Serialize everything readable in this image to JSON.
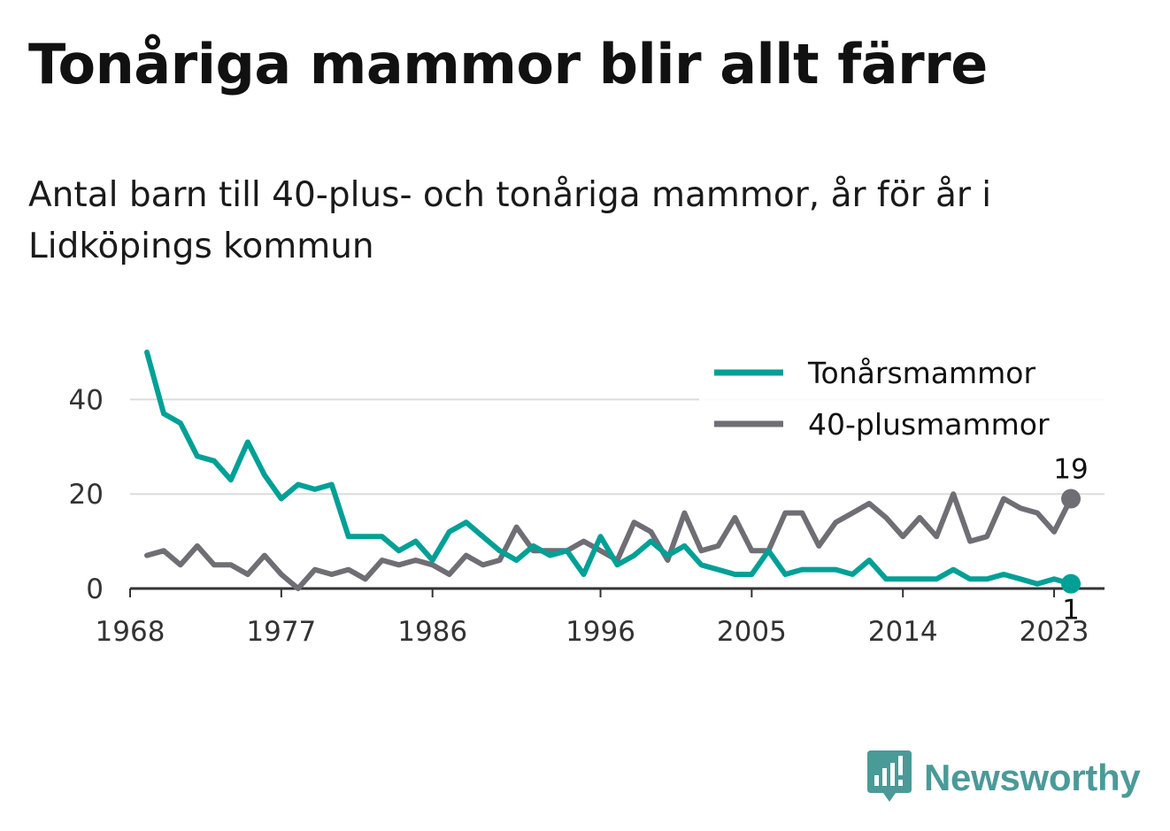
{
  "title": "Tonåriga mammor blir allt färre",
  "subtitle": "Antal barn till 40-plus- och tonåriga mammor, år för år i Lidköpings kommun",
  "brand": {
    "name": "Newsworthy",
    "color": "#4a9a98",
    "icon": "bar-chart-speech-bubble-icon"
  },
  "chart_data": {
    "type": "line",
    "x": [
      1969,
      1970,
      1971,
      1972,
      1973,
      1974,
      1975,
      1976,
      1977,
      1978,
      1979,
      1980,
      1981,
      1982,
      1983,
      1984,
      1985,
      1986,
      1987,
      1988,
      1989,
      1990,
      1991,
      1992,
      1993,
      1994,
      1995,
      1996,
      1997,
      1998,
      1999,
      2000,
      2001,
      2002,
      2003,
      2004,
      2005,
      2006,
      2007,
      2008,
      2009,
      2010,
      2011,
      2012,
      2013,
      2014,
      2015,
      2016,
      2017,
      2018,
      2019,
      2020,
      2021,
      2022,
      2023,
      2024
    ],
    "series": [
      {
        "name": "Tonårsmammor",
        "color": "#00a096",
        "values": [
          50,
          37,
          35,
          28,
          27,
          23,
          31,
          24,
          19,
          22,
          21,
          22,
          11,
          11,
          11,
          8,
          10,
          6,
          12,
          14,
          11,
          8,
          6,
          9,
          7,
          8,
          3,
          11,
          5,
          7,
          10,
          7,
          9,
          5,
          4,
          3,
          3,
          8,
          3,
          4,
          4,
          4,
          3,
          6,
          2,
          2,
          2,
          2,
          4,
          2,
          2,
          3,
          2,
          1,
          2,
          1
        ]
      },
      {
        "name": "40-plusmammor",
        "color": "#6f6e75",
        "values": [
          7,
          8,
          5,
          9,
          5,
          5,
          3,
          7,
          3,
          0,
          4,
          3,
          4,
          2,
          6,
          5,
          6,
          5,
          3,
          7,
          5,
          6,
          13,
          8,
          8,
          8,
          10,
          8,
          6,
          14,
          12,
          6,
          16,
          8,
          9,
          15,
          8,
          8,
          16,
          16,
          9,
          14,
          16,
          18,
          15,
          11,
          15,
          11,
          20,
          10,
          11,
          19,
          17,
          16,
          12,
          19
        ]
      }
    ],
    "end_labels": [
      {
        "series": "40-plusmammor",
        "value": "19"
      },
      {
        "series": "Tonårsmammor",
        "value": "1"
      }
    ],
    "xticks": [
      1968,
      1977,
      1986,
      1996,
      2005,
      2014,
      2023
    ],
    "yticks": [
      0,
      20,
      40
    ],
    "xlim": [
      1968,
      2026
    ],
    "ylim": [
      0,
      50
    ],
    "grid": true,
    "legend_position": "top-right"
  }
}
